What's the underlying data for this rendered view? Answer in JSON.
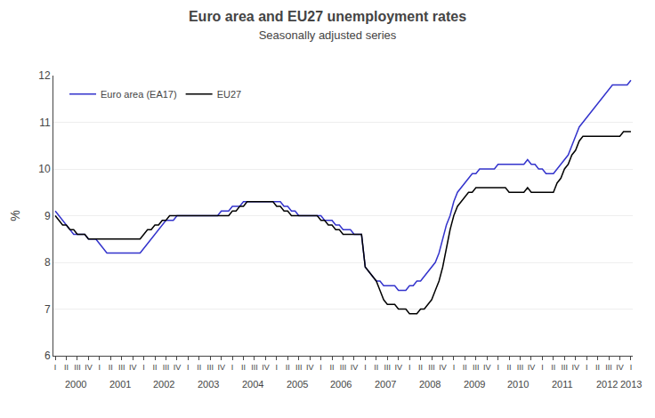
{
  "chart_data": {
    "type": "line",
    "title": "Euro area and EU27 unemployment rates",
    "subtitle": "Seasonally adjusted series",
    "y_label": "%",
    "categories": [
      "I",
      null,
      null,
      "II",
      null,
      null,
      "III",
      null,
      null,
      "IV",
      null,
      null,
      "I",
      null,
      null,
      "II",
      null,
      null,
      "III",
      null,
      null,
      "IV",
      null,
      null,
      "I",
      null,
      null,
      "II",
      null,
      null,
      "III",
      null,
      null,
      "IV",
      null,
      null,
      "I",
      null,
      null,
      "II",
      null,
      null,
      "III",
      null,
      null,
      "IV",
      null,
      null,
      "I",
      null,
      null,
      "II",
      null,
      null,
      "III",
      null,
      null,
      "IV",
      null,
      null,
      "I",
      null,
      null,
      "II",
      null,
      null,
      "III",
      null,
      null,
      "IV",
      null,
      null,
      "I",
      null,
      null,
      "II",
      null,
      null,
      "III",
      null,
      null,
      "IV",
      null,
      null,
      "I",
      null,
      null,
      "II",
      null,
      null,
      "III",
      null,
      null,
      "IV",
      null,
      null,
      "I",
      null,
      null,
      "II",
      null,
      null,
      "III",
      null,
      null,
      "IV",
      null,
      null,
      "I",
      null,
      null,
      "II",
      null,
      null,
      "III",
      null,
      null,
      "IV",
      null,
      null,
      "I",
      null,
      null,
      "II",
      null,
      null,
      "III",
      null,
      null,
      "IV",
      null,
      null,
      "I",
      null,
      null,
      "II",
      null,
      null,
      "III",
      null,
      null,
      "IV",
      null,
      null,
      "I",
      null,
      null,
      "II",
      null,
      null,
      "III",
      null,
      null,
      "IV",
      null,
      null,
      "I"
    ],
    "annotations": [
      "2000",
      "2001",
      "2002",
      "2003",
      "2004",
      "2005",
      "2006",
      "2007",
      "2008",
      "2009",
      "2010",
      "2011",
      "2012",
      "2013"
    ],
    "series": [
      {
        "name": "Euro area (EA17)",
        "color": "#3333cc",
        "values": [
          9.1,
          9.0,
          8.9,
          8.8,
          8.7,
          8.6,
          8.6,
          8.6,
          8.6,
          8.5,
          8.5,
          8.5,
          8.4,
          8.3,
          8.2,
          8.2,
          8.2,
          8.2,
          8.2,
          8.2,
          8.2,
          8.2,
          8.2,
          8.2,
          8.3,
          8.4,
          8.5,
          8.6,
          8.7,
          8.8,
          8.9,
          8.9,
          8.9,
          9.0,
          9.0,
          9.0,
          9.0,
          9.0,
          9.0,
          9.0,
          9.0,
          9.0,
          9.0,
          9.0,
          9.0,
          9.1,
          9.1,
          9.1,
          9.2,
          9.2,
          9.2,
          9.3,
          9.3,
          9.3,
          9.3,
          9.3,
          9.3,
          9.3,
          9.3,
          9.3,
          9.3,
          9.3,
          9.2,
          9.2,
          9.1,
          9.1,
          9.0,
          9.0,
          9.0,
          9.0,
          9.0,
          9.0,
          9.0,
          8.9,
          8.9,
          8.9,
          8.8,
          8.8,
          8.7,
          8.7,
          8.7,
          8.6,
          8.6,
          8.6,
          7.9,
          7.8,
          7.7,
          7.6,
          7.6,
          7.5,
          7.5,
          7.5,
          7.5,
          7.4,
          7.4,
          7.4,
          7.5,
          7.5,
          7.6,
          7.6,
          7.7,
          7.8,
          7.9,
          8.0,
          8.2,
          8.5,
          8.8,
          9.0,
          9.3,
          9.5,
          9.6,
          9.7,
          9.8,
          9.9,
          9.9,
          10.0,
          10.0,
          10.0,
          10.0,
          10.0,
          10.1,
          10.1,
          10.1,
          10.1,
          10.1,
          10.1,
          10.1,
          10.1,
          10.2,
          10.1,
          10.1,
          10.0,
          10.0,
          9.9,
          9.9,
          9.9,
          10.0,
          10.1,
          10.2,
          10.3,
          10.5,
          10.7,
          10.9,
          11.0,
          11.1,
          11.2,
          11.3,
          11.4,
          11.5,
          11.6,
          11.7,
          11.8,
          11.8,
          11.8,
          11.8,
          11.8,
          11.9
        ]
      },
      {
        "name": "EU27",
        "color": "#000000",
        "values": [
          9.0,
          8.9,
          8.8,
          8.8,
          8.7,
          8.7,
          8.6,
          8.6,
          8.6,
          8.5,
          8.5,
          8.5,
          8.5,
          8.5,
          8.5,
          8.5,
          8.5,
          8.5,
          8.5,
          8.5,
          8.5,
          8.5,
          8.5,
          8.5,
          8.6,
          8.7,
          8.7,
          8.8,
          8.8,
          8.9,
          8.9,
          9.0,
          9.0,
          9.0,
          9.0,
          9.0,
          9.0,
          9.0,
          9.0,
          9.0,
          9.0,
          9.0,
          9.0,
          9.0,
          9.0,
          9.0,
          9.0,
          9.0,
          9.1,
          9.1,
          9.2,
          9.2,
          9.3,
          9.3,
          9.3,
          9.3,
          9.3,
          9.3,
          9.3,
          9.3,
          9.2,
          9.2,
          9.1,
          9.1,
          9.0,
          9.0,
          9.0,
          9.0,
          9.0,
          9.0,
          9.0,
          9.0,
          8.9,
          8.9,
          8.8,
          8.8,
          8.7,
          8.7,
          8.6,
          8.6,
          8.6,
          8.6,
          8.6,
          8.6,
          7.9,
          7.8,
          7.7,
          7.6,
          7.4,
          7.2,
          7.1,
          7.1,
          7.1,
          7.0,
          7.0,
          7.0,
          6.9,
          6.9,
          6.9,
          7.0,
          7.0,
          7.1,
          7.2,
          7.4,
          7.6,
          7.9,
          8.3,
          8.7,
          9.0,
          9.2,
          9.3,
          9.4,
          9.5,
          9.5,
          9.6,
          9.6,
          9.6,
          9.6,
          9.6,
          9.6,
          9.6,
          9.6,
          9.6,
          9.5,
          9.5,
          9.5,
          9.5,
          9.5,
          9.6,
          9.5,
          9.5,
          9.5,
          9.5,
          9.5,
          9.5,
          9.5,
          9.7,
          9.8,
          10.0,
          10.1,
          10.3,
          10.4,
          10.6,
          10.7,
          10.7,
          10.7,
          10.7,
          10.7,
          10.7,
          10.7,
          10.7,
          10.7,
          10.7,
          10.7,
          10.8,
          10.8,
          10.8
        ]
      }
    ],
    "ylim": [
      6,
      12
    ],
    "yticks": [
      6,
      7,
      8,
      9,
      10,
      11,
      12
    ],
    "grid": true,
    "legend": "upper left"
  }
}
